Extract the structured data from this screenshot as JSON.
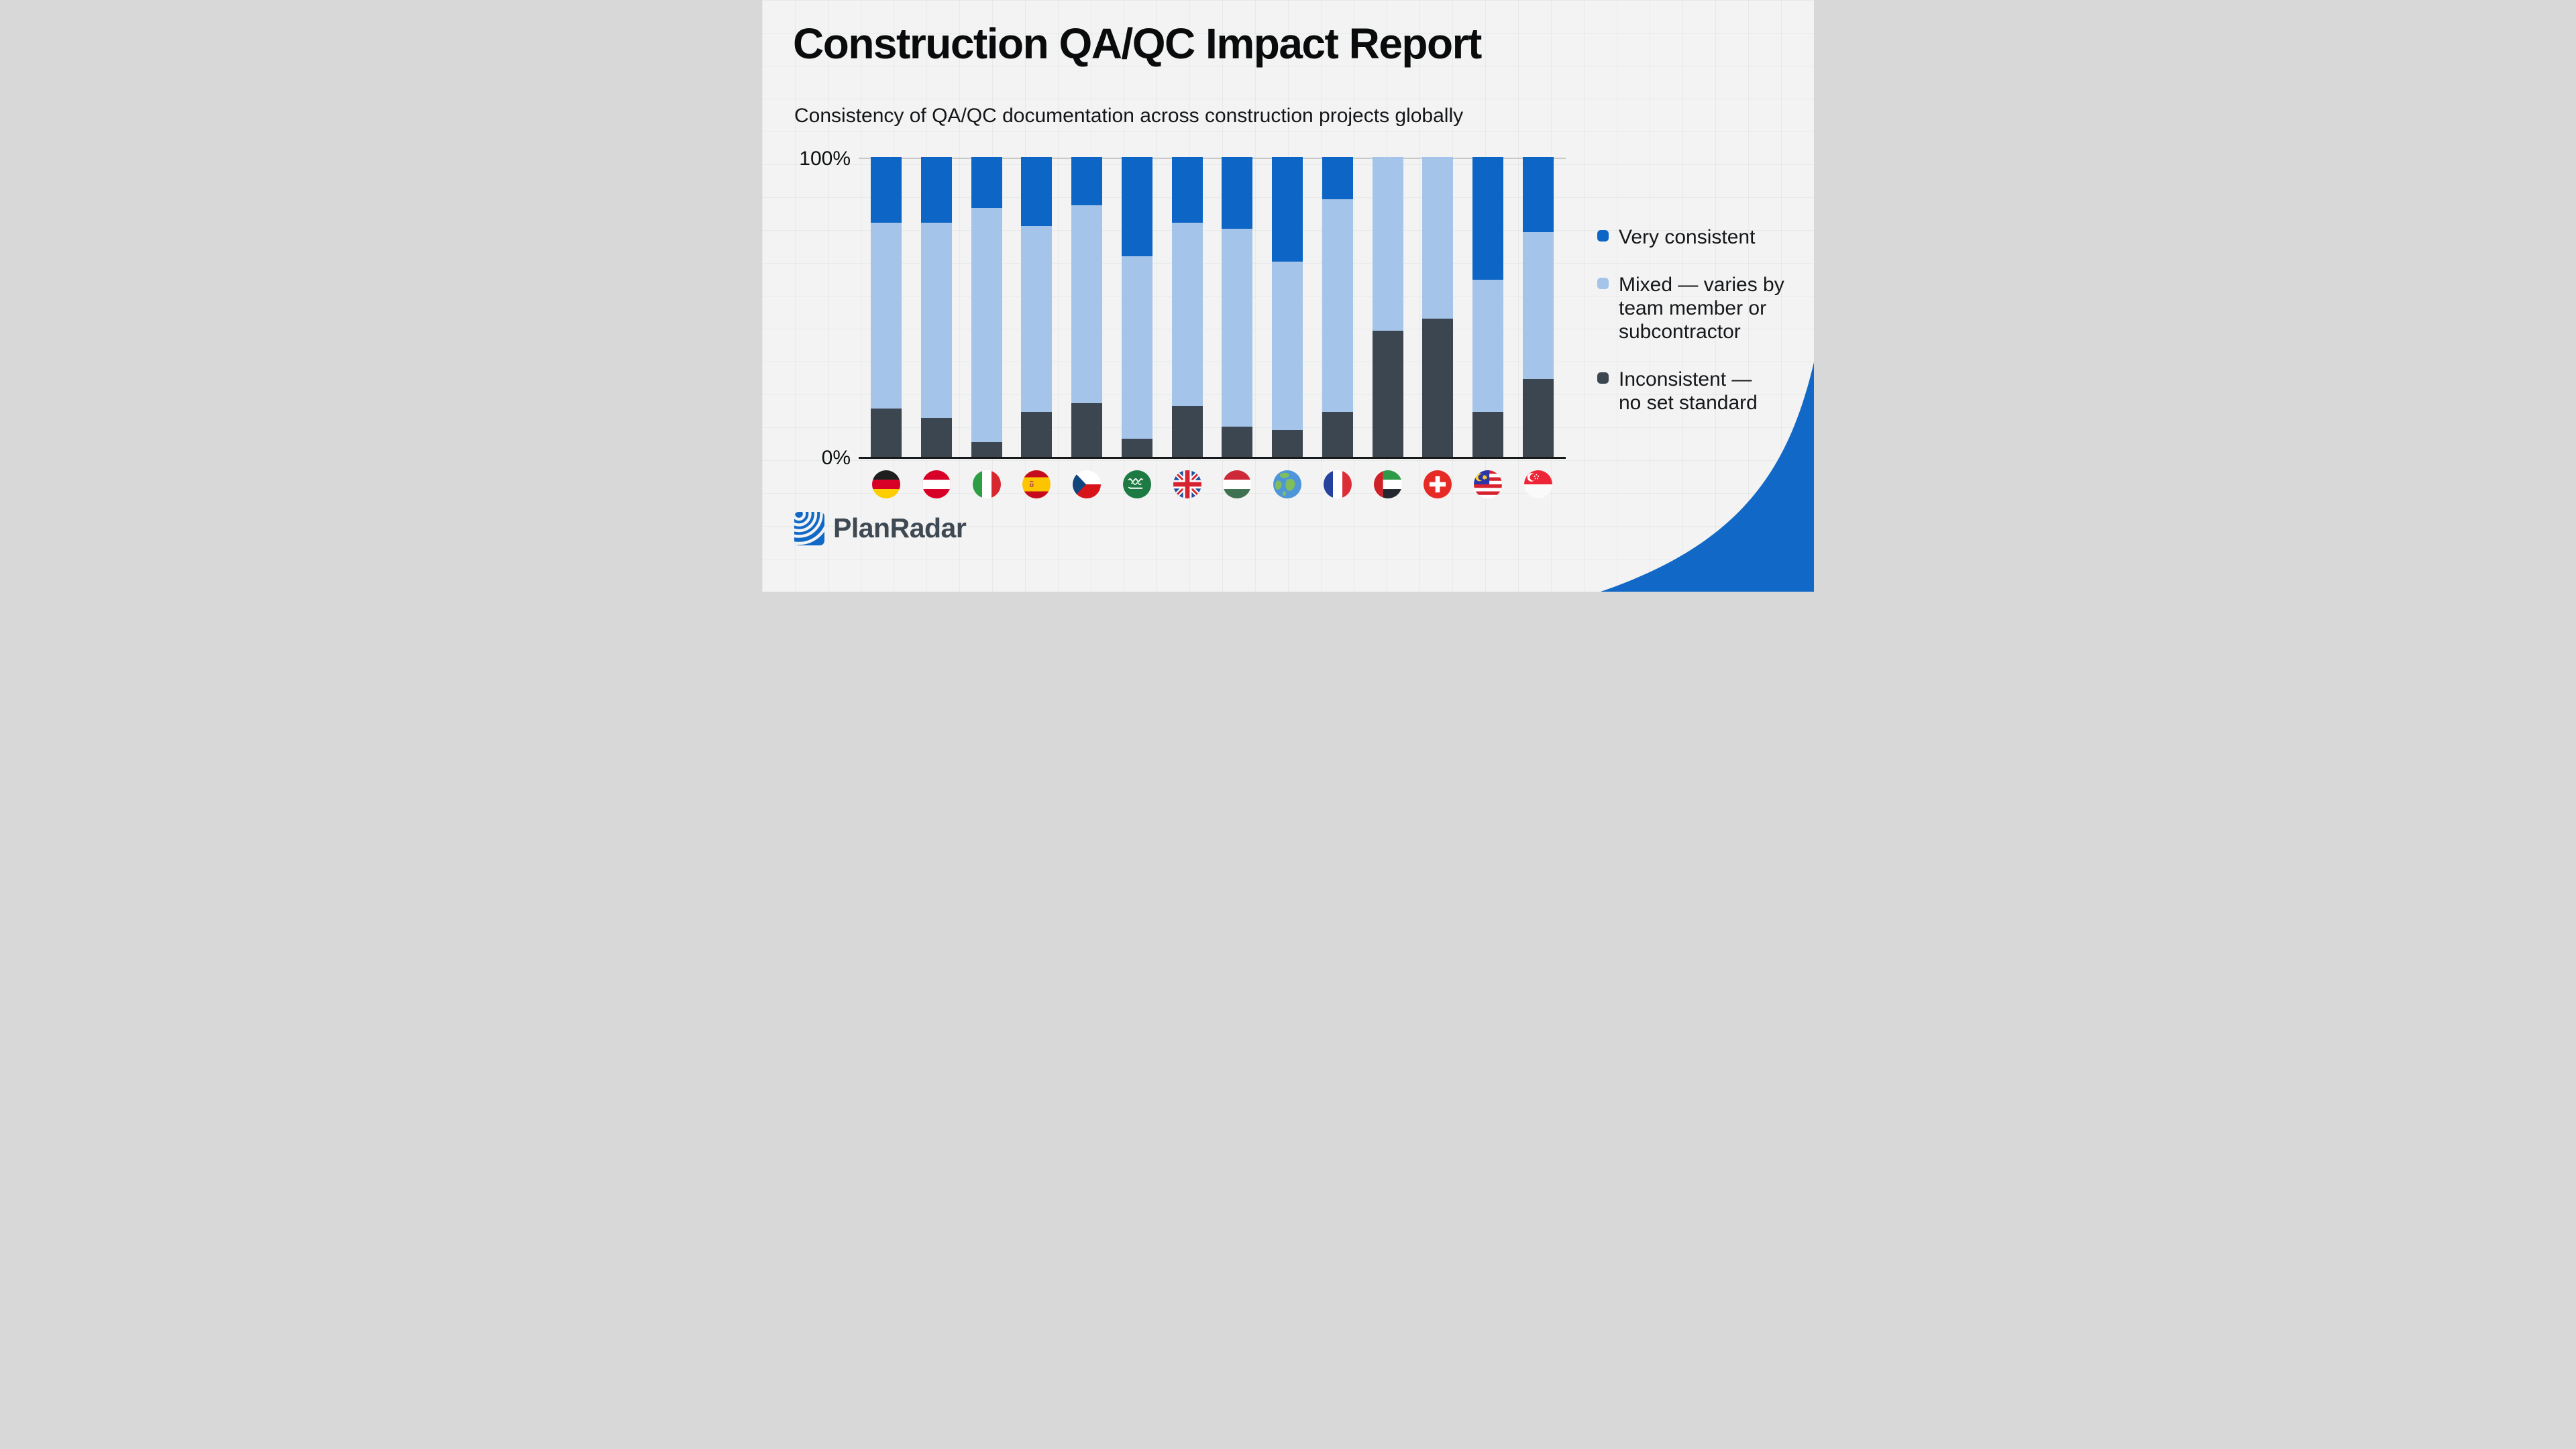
{
  "header": {
    "title": "Construction QA/QC Impact Report",
    "subtitle": "Consistency of QA/QC documentation across construction projects globally"
  },
  "axis": {
    "y_max_label": "100%",
    "y_min_label": "0%"
  },
  "colors": {
    "very_consistent": "#0d66c5",
    "mixed": "#a5c4e9",
    "inconsistent": "#3b4650",
    "accent_blue": "#1168c7",
    "background": "#f2f3f2"
  },
  "legend": {
    "items": [
      {
        "key": "very_consistent",
        "label": "Very consistent"
      },
      {
        "key": "mixed",
        "label": "Mixed — varies by\nteam member or\nsubcontractor"
      },
      {
        "key": "inconsistent",
        "label": "Inconsistent —\nno set standard"
      }
    ]
  },
  "brand": {
    "logo_text": "PlanRadar"
  },
  "chart_data": {
    "type": "bar",
    "stacked": true,
    "units": "%",
    "ylim": [
      0,
      100
    ],
    "y_tick_labels": [
      "0%",
      "100%"
    ],
    "grid": false,
    "legend_position": "right",
    "title": "Consistency of QA/QC documentation across construction projects globally",
    "categories": [
      "Germany",
      "Austria",
      "Italy",
      "Spain",
      "Czech Republic",
      "Saudi Arabia",
      "United Kingdom",
      "Hungary",
      "Global",
      "France",
      "United Arab Emirates",
      "Switzerland",
      "Malaysia",
      "Singapore"
    ],
    "category_flag_icons": [
      "germany-flag-icon",
      "austria-flag-icon",
      "italy-flag-icon",
      "spain-flag-icon",
      "czechia-flag-icon",
      "saudi-arabia-flag-icon",
      "united-kingdom-flag-icon",
      "hungary-flag-icon",
      "globe-icon",
      "france-flag-icon",
      "uae-flag-icon",
      "switzerland-flag-icon",
      "malaysia-flag-icon",
      "singapore-flag-icon"
    ],
    "series": [
      {
        "name": "Very consistent",
        "values": [
          22,
          22,
          17,
          23,
          16,
          33,
          22,
          24,
          35,
          14,
          0,
          0,
          41,
          25
        ]
      },
      {
        "name": "Mixed — varies by team member or subcontractor",
        "values": [
          62,
          65,
          78,
          62,
          66,
          61,
          61,
          66,
          56,
          71,
          58,
          54,
          44,
          49
        ]
      },
      {
        "name": "Inconsistent — no set standard",
        "values": [
          16,
          13,
          5,
          15,
          18,
          6,
          17,
          10,
          9,
          15,
          42,
          46,
          15,
          26
        ]
      }
    ]
  }
}
